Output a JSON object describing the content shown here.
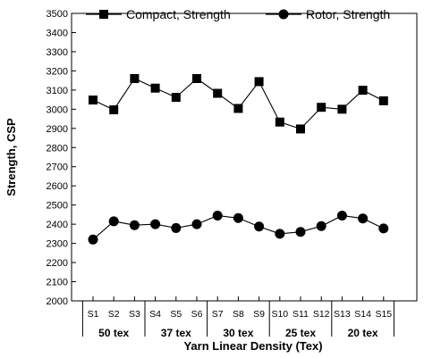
{
  "chart_data": {
    "type": "line",
    "xlabel": "Yarn Linear Density (Tex)",
    "ylabel": "Strength, CSP",
    "ylim": [
      2000,
      3500
    ],
    "yticks": [
      2000,
      2100,
      2200,
      2300,
      2400,
      2500,
      2600,
      2700,
      2800,
      2900,
      3000,
      3100,
      3200,
      3300,
      3400,
      3500
    ],
    "categories": [
      "S1",
      "S2",
      "S3",
      "S4",
      "S5",
      "S6",
      "S7",
      "S8",
      "S9",
      "S10",
      "S11",
      "S12",
      "S13",
      "S14",
      "S15"
    ],
    "groups": [
      {
        "label": "50 tex",
        "from": 0,
        "to": 2
      },
      {
        "label": "37 tex",
        "from": 3,
        "to": 5
      },
      {
        "label": "30 tex",
        "from": 6,
        "to": 8
      },
      {
        "label": "25 tex",
        "from": 9,
        "to": 11
      },
      {
        "label": "20 tex",
        "from": 12,
        "to": 14
      }
    ],
    "series": [
      {
        "name": "Compact, Strength",
        "marker": "square",
        "values": [
          3048,
          2997,
          3160,
          3110,
          3062,
          3160,
          3083,
          3004,
          3144,
          2933,
          2897,
          3010,
          3000,
          3099,
          3044
        ]
      },
      {
        "name": "Rotor, Strength",
        "marker": "circle",
        "values": [
          2320,
          2415,
          2395,
          2400,
          2380,
          2400,
          2445,
          2432,
          2388,
          2350,
          2360,
          2390,
          2445,
          2430,
          2378
        ]
      }
    ],
    "legend_position": "top",
    "grid": false
  }
}
